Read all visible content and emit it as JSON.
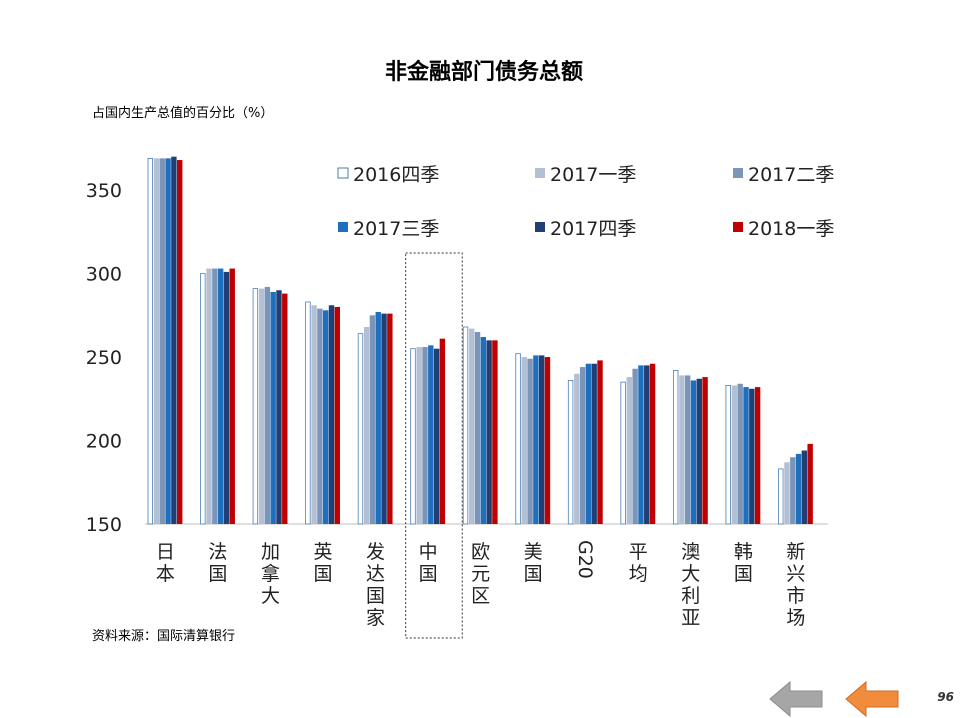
{
  "slide": {
    "title": "非金融部门债务总额",
    "page_number": "96",
    "source": "资料来源：国际清算银行"
  },
  "chart_data": {
    "type": "bar",
    "title": "非金融部门债务总额",
    "ylabel": "占国内生产总值的百分比（%）",
    "xlabel": "",
    "ylim": [
      150,
      380
    ],
    "yticks": [
      150,
      200,
      250,
      300,
      350
    ],
    "categories": [
      "日本",
      "法国",
      "加拿大",
      "英国",
      "发达国家",
      "中国",
      "欧元区",
      "美国",
      "G20",
      "平均",
      "澳大利亚",
      "韩国",
      "新兴市场"
    ],
    "highlight_category": "中国",
    "legend_position": "upper-right, two rows",
    "series": [
      {
        "name": "2016四季",
        "color": "#ffffff",
        "stroke": "#4a7eb5",
        "values": [
          369,
          300,
          291,
          283,
          264,
          255,
          268,
          252,
          236,
          235,
          242,
          233,
          183
        ]
      },
      {
        "name": "2017一季",
        "color": "#b3bfd3",
        "values": [
          369,
          303,
          291,
          281,
          268,
          256,
          267,
          250,
          240,
          238,
          239,
          233,
          187
        ]
      },
      {
        "name": "2017二季",
        "color": "#7b95b8",
        "values": [
          369,
          303,
          292,
          279,
          275,
          256,
          265,
          249,
          244,
          243,
          239,
          234,
          190
        ]
      },
      {
        "name": "2017三季",
        "color": "#1f6fbf",
        "values": [
          369,
          303,
          289,
          278,
          277,
          257,
          262,
          251,
          246,
          245,
          236,
          232,
          192
        ]
      },
      {
        "name": "2017四季",
        "color": "#1f3f75",
        "values": [
          370,
          301,
          290,
          281,
          276,
          255,
          260,
          251,
          246,
          245,
          237,
          231,
          194
        ]
      },
      {
        "name": "2018一季",
        "color": "#c00000",
        "values": [
          368,
          303,
          288,
          280,
          276,
          261,
          260,
          250,
          248,
          246,
          238,
          232,
          198
        ]
      }
    ]
  },
  "nav": {
    "back_icon": "arrow-left-icon-gray",
    "forward_icon": "arrow-left-icon-orange",
    "back_color": "#a6a6a6",
    "forward_color": "#f08c3c"
  }
}
